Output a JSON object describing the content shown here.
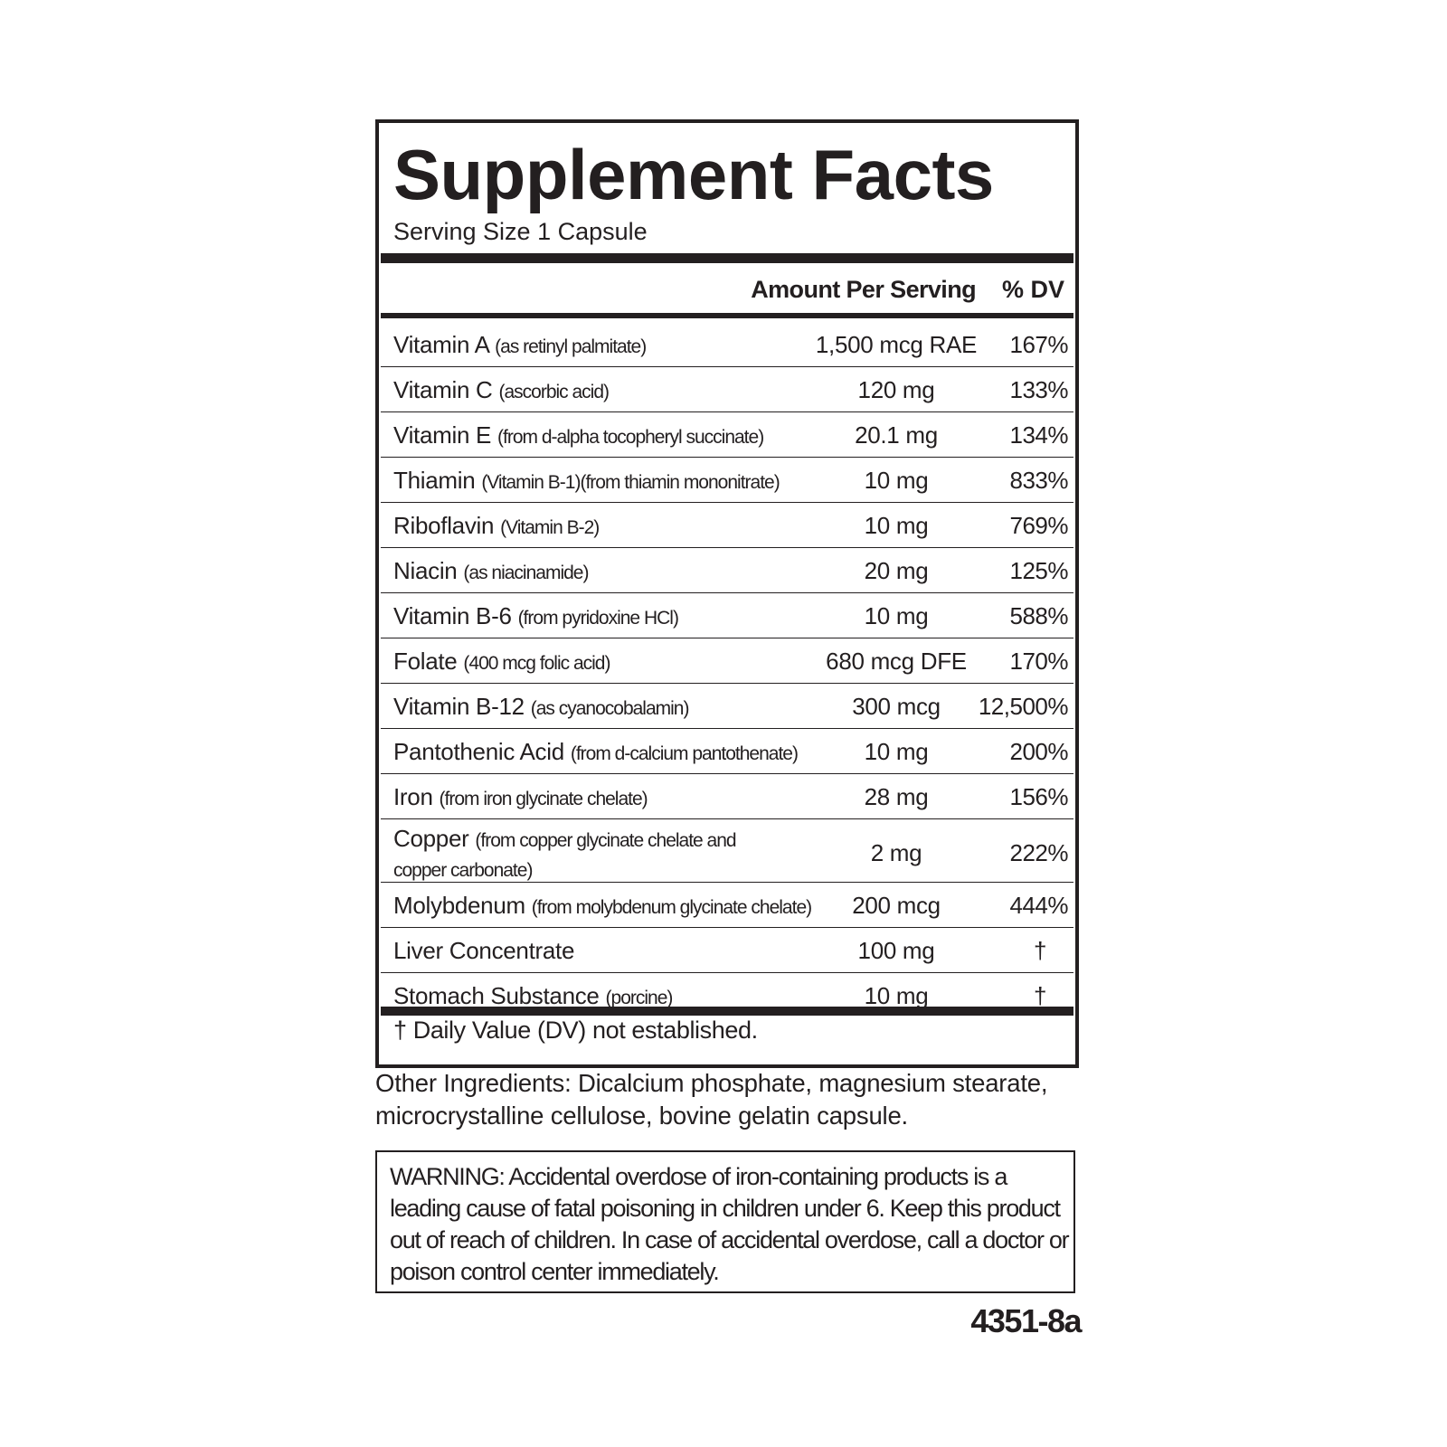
{
  "panel": {
    "title": "Supplement Facts",
    "serving_size": "Serving Size 1 Capsule",
    "header_amount": "Amount Per Serving",
    "header_dv": "% DV",
    "rows": [
      {
        "name": "Vitamin A",
        "source": "(as retinyl palmitate)",
        "amount": "1,500 mcg RAE",
        "dv": "167%"
      },
      {
        "name": "Vitamin C",
        "source": "(ascorbic acid)",
        "amount": "120 mg",
        "dv": "133%"
      },
      {
        "name": "Vitamin E",
        "source": "(from d-alpha tocopheryl succinate)",
        "amount": "20.1 mg",
        "dv": "134%"
      },
      {
        "name": "Thiamin",
        "source": "(Vitamin B-1)(from thiamin mononitrate)",
        "amount": "10 mg",
        "dv": "833%"
      },
      {
        "name": "Riboflavin",
        "source": "(Vitamin B-2)",
        "amount": "10 mg",
        "dv": "769%"
      },
      {
        "name": "Niacin",
        "source": "(as niacinamide)",
        "amount": "20 mg",
        "dv": "125%"
      },
      {
        "name": "Vitamin B-6",
        "source": "(from pyridoxine HCl)",
        "amount": "10 mg",
        "dv": "588%"
      },
      {
        "name": "Folate",
        "source": "(400 mcg folic acid)",
        "amount": "680 mcg DFE",
        "dv": "170%"
      },
      {
        "name": "Vitamin B-12",
        "source": "(as cyanocobalamin)",
        "amount": "300 mcg",
        "dv": "12,500%"
      },
      {
        "name": "Pantothenic Acid",
        "source": "(from d-calcium pantothenate)",
        "amount": "10 mg",
        "dv": "200%"
      },
      {
        "name": "Iron",
        "source": "(from iron glycinate chelate)",
        "amount": "28 mg",
        "dv": "156%"
      },
      {
        "name": "Copper",
        "source": "(from copper glycinate chelate and copper carbonate)",
        "amount": "2 mg",
        "dv": "222%"
      },
      {
        "name": "Molybdenum",
        "source": "(from molybdenum glycinate chelate)",
        "amount": "200 mcg",
        "dv": "444%"
      },
      {
        "name": "Liver Concentrate",
        "source": "",
        "amount": "100 mg",
        "dv": "†"
      },
      {
        "name": "Stomach Substance",
        "source": "(porcine)",
        "amount": "10 mg",
        "dv": "†"
      }
    ],
    "footnote": "† Daily Value (DV) not established."
  },
  "other_ingredients": "Other Ingredients: Dicalcium phosphate, magnesium stearate, microcrystalline cellulose, bovine gelatin capsule.",
  "warning": "WARNING: Accidental overdose of iron-containing products is a leading cause of fatal poisoning in children under 6.  Keep this product out of reach of children.  In case of accidental overdose, call a doctor or poison control center immediately.",
  "product_code": "4351-8a"
}
